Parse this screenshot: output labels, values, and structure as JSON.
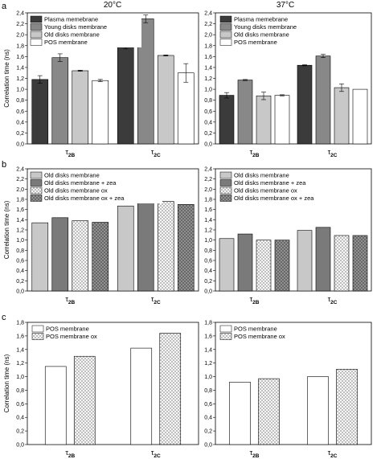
{
  "panels": [
    {
      "letter": "a",
      "temperature_left": "20°C",
      "temperature_right": "37°C"
    },
    {
      "letter": "b"
    },
    {
      "letter": "c"
    }
  ],
  "styles": {
    "plasma": {
      "fill": "#3b3b3b",
      "pattern": "solid"
    },
    "young": {
      "fill": "#888888",
      "pattern": "solid"
    },
    "old": {
      "fill": "#c8c8c8",
      "pattern": "solid"
    },
    "pos": {
      "fill": "#ffffff",
      "pattern": "solid"
    },
    "old_zea": {
      "fill": "#7a7a7a",
      "pattern": "solid"
    },
    "old_ox": {
      "fill": "#ffffff",
      "pattern": "cross-light"
    },
    "old_ox_zea": {
      "fill": "#9a9a9a",
      "pattern": "cross-dark"
    },
    "pos_ox": {
      "fill": "#ffffff",
      "pattern": "cross-light"
    }
  },
  "chart_data": [
    {
      "id": "a-20",
      "type": "bar",
      "panel": "a",
      "temperature": "20°C",
      "ylabel": "Correlation time (ns)",
      "ylim": [
        0,
        2.4
      ],
      "yticks": [
        "0,0",
        "0,2",
        "0,4",
        "0,6",
        "0,8",
        "1,0",
        "1,2",
        "1,4",
        "1,6",
        "1,8",
        "2,0",
        "2,2",
        "2,4"
      ],
      "categories": [
        "τ2B",
        "τ2C"
      ],
      "series": [
        {
          "name": "Plasma memebrane",
          "style": "plasma",
          "values": [
            1.18,
            1.82
          ],
          "errors": [
            0.07,
            0.08
          ]
        },
        {
          "name": "Young disks membrane",
          "style": "young",
          "values": [
            1.58,
            2.29
          ],
          "errors": [
            0.07,
            0.07
          ]
        },
        {
          "name": "Old disks membrane",
          "style": "old",
          "values": [
            1.34,
            1.62
          ],
          "errors": [
            0.01,
            0.01
          ]
        },
        {
          "name": "POS membrane",
          "style": "pos",
          "values": [
            1.16,
            1.3
          ],
          "errors": [
            0.02,
            0.17
          ]
        }
      ]
    },
    {
      "id": "a-37",
      "type": "bar",
      "panel": "a",
      "temperature": "37°C",
      "ylabel": "",
      "ylim": [
        0,
        2.4
      ],
      "yticks": [
        "0,0",
        "0,2",
        "0,4",
        "0,6",
        "0,8",
        "1,0",
        "1,2",
        "1,4",
        "1,6",
        "1,8",
        "2,0",
        "2,2",
        "2,4"
      ],
      "categories": [
        "τ2B",
        "τ2C"
      ],
      "series": [
        {
          "name": "Plasma memebrane",
          "style": "plasma",
          "values": [
            0.89,
            1.44
          ],
          "errors": [
            0.05,
            0.01
          ]
        },
        {
          "name": "Young disks membrane",
          "style": "young",
          "values": [
            1.17,
            1.61
          ],
          "errors": [
            0.01,
            0.03
          ]
        },
        {
          "name": "Old disks membrane",
          "style": "old",
          "values": [
            0.88,
            1.03
          ],
          "errors": [
            0.07,
            0.07
          ]
        },
        {
          "name": "POS membrane",
          "style": "pos",
          "values": [
            0.89,
            1.0
          ],
          "errors": [
            0.01,
            0.0
          ]
        }
      ]
    },
    {
      "id": "b-20",
      "type": "bar",
      "panel": "b",
      "ylabel": "Correlation time (ns)",
      "ylim": [
        0,
        2.4
      ],
      "yticks": [
        "0,0",
        "0,2",
        "0,4",
        "0,6",
        "0,8",
        "1,0",
        "1,2",
        "1,4",
        "1,6",
        "1,8",
        "2,0",
        "2,2",
        "2,4"
      ],
      "categories": [
        "τ2B",
        "τ2C"
      ],
      "series": [
        {
          "name": "Old disks membrane",
          "style": "old",
          "values": [
            1.34,
            1.67
          ]
        },
        {
          "name": "Old disks membrane + zea",
          "style": "old_zea",
          "values": [
            1.44,
            1.87
          ]
        },
        {
          "name": "Old disks membrane ox",
          "style": "old_ox",
          "values": [
            1.38,
            1.76
          ]
        },
        {
          "name": "Old disks membrane ox + zea",
          "style": "old_ox_zea",
          "values": [
            1.35,
            1.7
          ]
        }
      ]
    },
    {
      "id": "b-37",
      "type": "bar",
      "panel": "b",
      "ylabel": "",
      "ylim": [
        0,
        2.4
      ],
      "yticks": [
        "0,0",
        "0,2",
        "0,4",
        "0,6",
        "0,8",
        "1,0",
        "1,2",
        "1,4",
        "1,6",
        "1,8",
        "2,0",
        "2,2",
        "2,4"
      ],
      "categories": [
        "τ2B",
        "τ2C"
      ],
      "series": [
        {
          "name": "Old disks membrane",
          "style": "old",
          "values": [
            1.03,
            1.19
          ]
        },
        {
          "name": "Old disks membrane + zea",
          "style": "old_zea",
          "values": [
            1.12,
            1.25
          ]
        },
        {
          "name": "Old disks membrane ox",
          "style": "old_ox",
          "values": [
            1.0,
            1.09
          ]
        },
        {
          "name": "Old disks membrane ox + zea",
          "style": "old_ox_zea",
          "values": [
            1.0,
            1.09
          ]
        }
      ]
    },
    {
      "id": "c-20",
      "type": "bar",
      "panel": "c",
      "ylabel": "Correlation time (ns)",
      "ylim": [
        0,
        1.8
      ],
      "yticks": [
        "0,0",
        "0,2",
        "0,4",
        "0,6",
        "0,8",
        "1,0",
        "1,2",
        "1,4",
        "1,6",
        "1,8"
      ],
      "categories": [
        "τ2B",
        "τ2C"
      ],
      "series": [
        {
          "name": "POS membrane",
          "style": "pos",
          "values": [
            1.15,
            1.42
          ]
        },
        {
          "name": "POS membrane ox",
          "style": "pos_ox",
          "values": [
            1.3,
            1.64
          ]
        }
      ]
    },
    {
      "id": "c-37",
      "type": "bar",
      "panel": "c",
      "ylabel": "",
      "ylim": [
        0,
        1.8
      ],
      "yticks": [
        "0,0",
        "0,2",
        "0,4",
        "0,6",
        "0,8",
        "1,0",
        "1,2",
        "1,4",
        "1,6",
        "1,8"
      ],
      "categories": [
        "τ2B",
        "τ2C"
      ],
      "series": [
        {
          "name": "POS membrane",
          "style": "pos",
          "values": [
            0.92,
            1.0
          ]
        },
        {
          "name": "POS membrane ox",
          "style": "pos_ox",
          "values": [
            0.97,
            1.11
          ]
        }
      ]
    }
  ]
}
